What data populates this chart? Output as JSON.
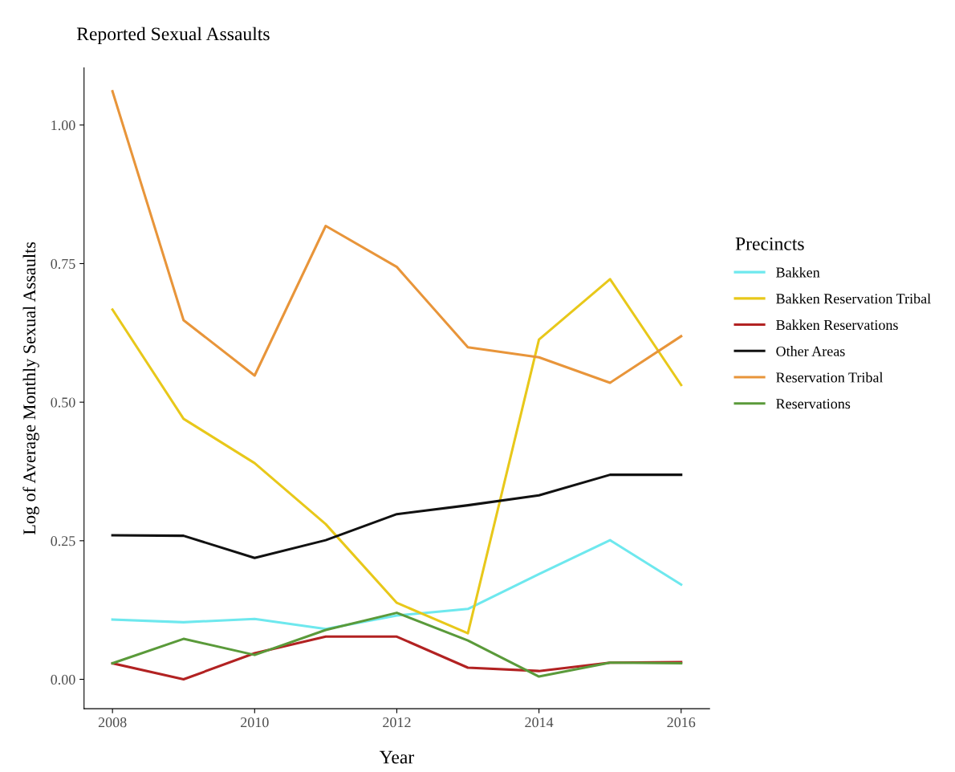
{
  "chart_data": {
    "type": "line",
    "title": "Reported Sexual Assaults",
    "xlabel": "Year",
    "ylabel": "Log of Average Monthly Sexual Assaults",
    "legend_title": "Precincts",
    "x": [
      2008,
      2009,
      2010,
      2011,
      2012,
      2013,
      2014,
      2015,
      2016
    ],
    "series": [
      {
        "name": "Bakken",
        "color": "#6ee8ee",
        "values": [
          0.108,
          0.103,
          0.109,
          0.091,
          0.115,
          0.127,
          0.19,
          0.251,
          0.171
        ]
      },
      {
        "name": "Bakken Reservation Tribal",
        "color": "#e8c81a",
        "values": [
          0.667,
          0.47,
          0.39,
          0.28,
          0.138,
          0.083,
          0.613,
          0.722,
          0.531
        ]
      },
      {
        "name": "Bakken Reservations",
        "color": "#b22222",
        "values": [
          0.029,
          0.0,
          0.047,
          0.077,
          0.077,
          0.021,
          0.015,
          0.03,
          0.031
        ]
      },
      {
        "name": "Other Areas",
        "color": "#111111",
        "values": [
          0.26,
          0.259,
          0.219,
          0.251,
          0.298,
          0.314,
          0.332,
          0.369,
          0.369
        ]
      },
      {
        "name": "Reservation Tribal",
        "color": "#e8953a",
        "values": [
          1.061,
          0.648,
          0.548,
          0.818,
          0.744,
          0.599,
          0.581,
          0.535,
          0.619
        ]
      },
      {
        "name": "Reservations",
        "color": "#5a9a3a",
        "values": [
          0.029,
          0.073,
          0.044,
          0.089,
          0.12,
          0.07,
          0.005,
          0.03,
          0.029
        ]
      }
    ],
    "xlim": [
      2007.6,
      2016.4
    ],
    "xticks": [
      2008,
      2010,
      2012,
      2014,
      2016
    ],
    "ylim": [
      -0.053,
      1.103
    ],
    "yticks": [
      {
        "value": 0,
        "label": "0.00"
      },
      {
        "value": 0.25,
        "label": "0.25"
      },
      {
        "value": 0.5,
        "label": "0.50"
      },
      {
        "value": 0.75,
        "label": "0.75"
      },
      {
        "value": 1,
        "label": "1.00"
      }
    ],
    "grid": false,
    "legend": "right",
    "marker": "none",
    "line_style": "solid"
  }
}
